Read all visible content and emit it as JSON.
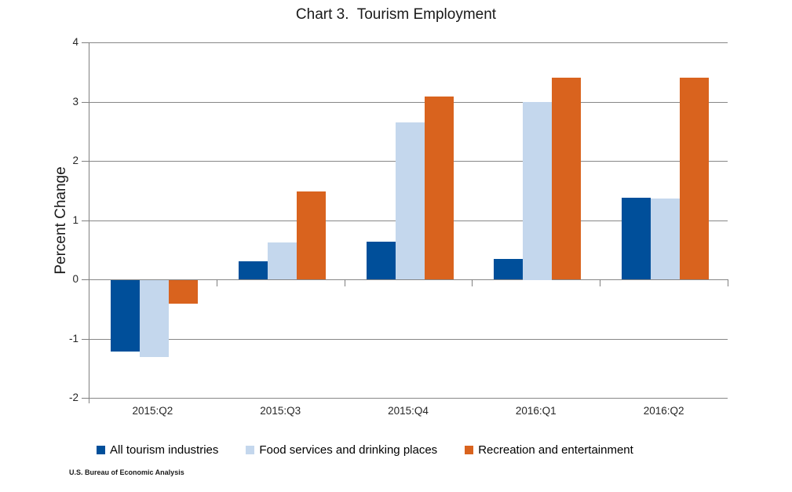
{
  "footer": "U.S. Bureau of Economic Analysis",
  "colors": {
    "gridline": "#878787",
    "axis": "#808080",
    "title_text": "#1a1a1a",
    "tick_text": "#262626"
  },
  "chart_data": {
    "type": "bar",
    "title": "Chart 3.  Tourism Employment",
    "xlabel": "",
    "ylabel": "Percent Change",
    "ylim": [
      -2,
      4
    ],
    "ytick_step": 1,
    "ytick_labels": [
      "-2",
      "-1",
      "0",
      "1",
      "2",
      "3",
      "4"
    ],
    "grid": true,
    "legend_position": "bottom",
    "categories": [
      "2015:Q2",
      "2015:Q3",
      "2015:Q4",
      "2016:Q1",
      "2016:Q2"
    ],
    "series": [
      {
        "name": "All tourism industries",
        "color": "#004F9A",
        "values": [
          -1.2,
          0.3,
          0.63,
          0.35,
          1.38
        ]
      },
      {
        "name": "Food services and drinking places",
        "color": "#C4D7ED",
        "values": [
          -1.3,
          0.62,
          2.65,
          3.0,
          1.37
        ]
      },
      {
        "name": "Recreation and entertainment",
        "color": "#D9631E",
        "values": [
          -0.4,
          1.48,
          3.09,
          3.41,
          3.41
        ]
      }
    ],
    "source": "U.S. Bureau of Economic Analysis"
  }
}
